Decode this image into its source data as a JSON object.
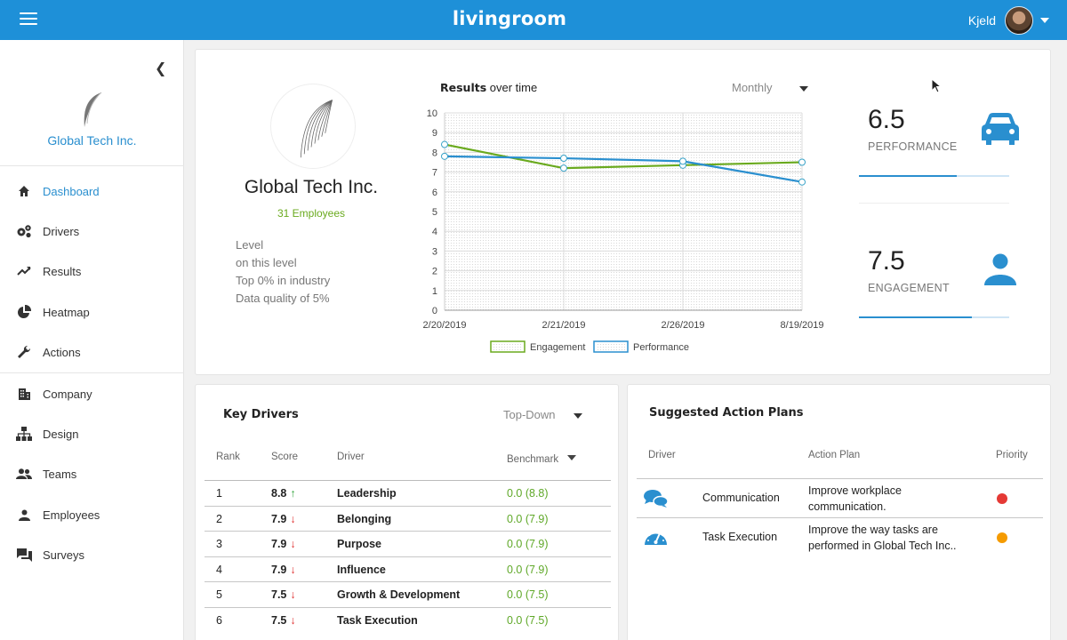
{
  "app": {
    "brand": "livingroom",
    "user_name": "Kjeld"
  },
  "sidebar": {
    "company": "Global Tech Inc.",
    "items": [
      {
        "label": "Dashboard",
        "icon": "home-icon"
      },
      {
        "label": "Drivers",
        "icon": "gears-icon"
      },
      {
        "label": "Results",
        "icon": "trend-icon"
      },
      {
        "label": "Heatmap",
        "icon": "pie-icon"
      },
      {
        "label": "Actions",
        "icon": "wrench-icon"
      },
      {
        "label": "Company",
        "icon": "building-icon"
      },
      {
        "label": "Design",
        "icon": "org-chart-icon"
      },
      {
        "label": "Teams",
        "icon": "group-icon"
      },
      {
        "label": "Employees",
        "icon": "person-icon"
      },
      {
        "label": "Surveys",
        "icon": "chat-icon"
      }
    ]
  },
  "company": {
    "name": "Global Tech Inc.",
    "employees": "31 Employees",
    "stats": [
      "Level",
      "on this level",
      "Top 0% in industry",
      "Data quality of 5%"
    ]
  },
  "chart": {
    "title_bold": "Results",
    "title_rest": " over time",
    "period": "Monthly"
  },
  "chart_data": {
    "type": "line",
    "x": [
      "2/20/2019",
      "2/21/2019",
      "2/26/2019",
      "8/19/2019"
    ],
    "series": [
      {
        "name": "Engagement",
        "values": [
          8.4,
          7.2,
          7.35,
          7.5
        ],
        "color": "#6aaa1e"
      },
      {
        "name": "Performance",
        "values": [
          7.8,
          7.7,
          7.55,
          6.5
        ],
        "color": "#2a8fcf"
      }
    ],
    "ylim": [
      0,
      10
    ],
    "yticks": [
      "0",
      "1",
      "2",
      "3",
      "4",
      "5",
      "6",
      "7",
      "8",
      "9",
      "10"
    ],
    "grid": true,
    "legend": "bottom"
  },
  "kpis": [
    {
      "value": "6.5",
      "label": "PERFORMANCE",
      "icon": "car-icon",
      "fill": 0.65
    },
    {
      "value": "7.5",
      "label": "ENGAGEMENT",
      "icon": "person-icon",
      "fill": 0.75
    }
  ],
  "drivers": {
    "title": "Key Drivers",
    "sort": "Top-Down",
    "headers": {
      "rank": "Rank",
      "score": "Score",
      "driver": "Driver",
      "benchmark": "Benchmark"
    },
    "rows": [
      {
        "rank": "1",
        "score": "8.8",
        "trend": "up",
        "driver": "Leadership",
        "benchmark": "0.0 (8.8)"
      },
      {
        "rank": "2",
        "score": "7.9",
        "trend": "down",
        "driver": "Belonging",
        "benchmark": "0.0 (7.9)"
      },
      {
        "rank": "3",
        "score": "7.9",
        "trend": "down",
        "driver": "Purpose",
        "benchmark": "0.0 (7.9)"
      },
      {
        "rank": "4",
        "score": "7.9",
        "trend": "down",
        "driver": "Influence",
        "benchmark": "0.0 (7.9)"
      },
      {
        "rank": "5",
        "score": "7.5",
        "trend": "down",
        "driver": "Growth & Development",
        "benchmark": "0.0 (7.5)"
      },
      {
        "rank": "6",
        "score": "7.5",
        "trend": "down",
        "driver": "Task Execution",
        "benchmark": "0.0 (7.5)"
      }
    ]
  },
  "actions": {
    "title": "Suggested Action Plans",
    "headers": {
      "driver": "Driver",
      "plan": "Action Plan",
      "priority": "Priority"
    },
    "rows": [
      {
        "icon": "chat-bubbles-icon",
        "driver": "Communication",
        "plan_1": "Improve workplace",
        "plan_2": "communication.",
        "priority_color": "#e53935"
      },
      {
        "icon": "speedometer-icon",
        "driver": "Task Execution",
        "plan_1": "Improve the way tasks are",
        "plan_2": "performed in Global Tech Inc..",
        "priority_color": "#f59b00"
      }
    ]
  }
}
